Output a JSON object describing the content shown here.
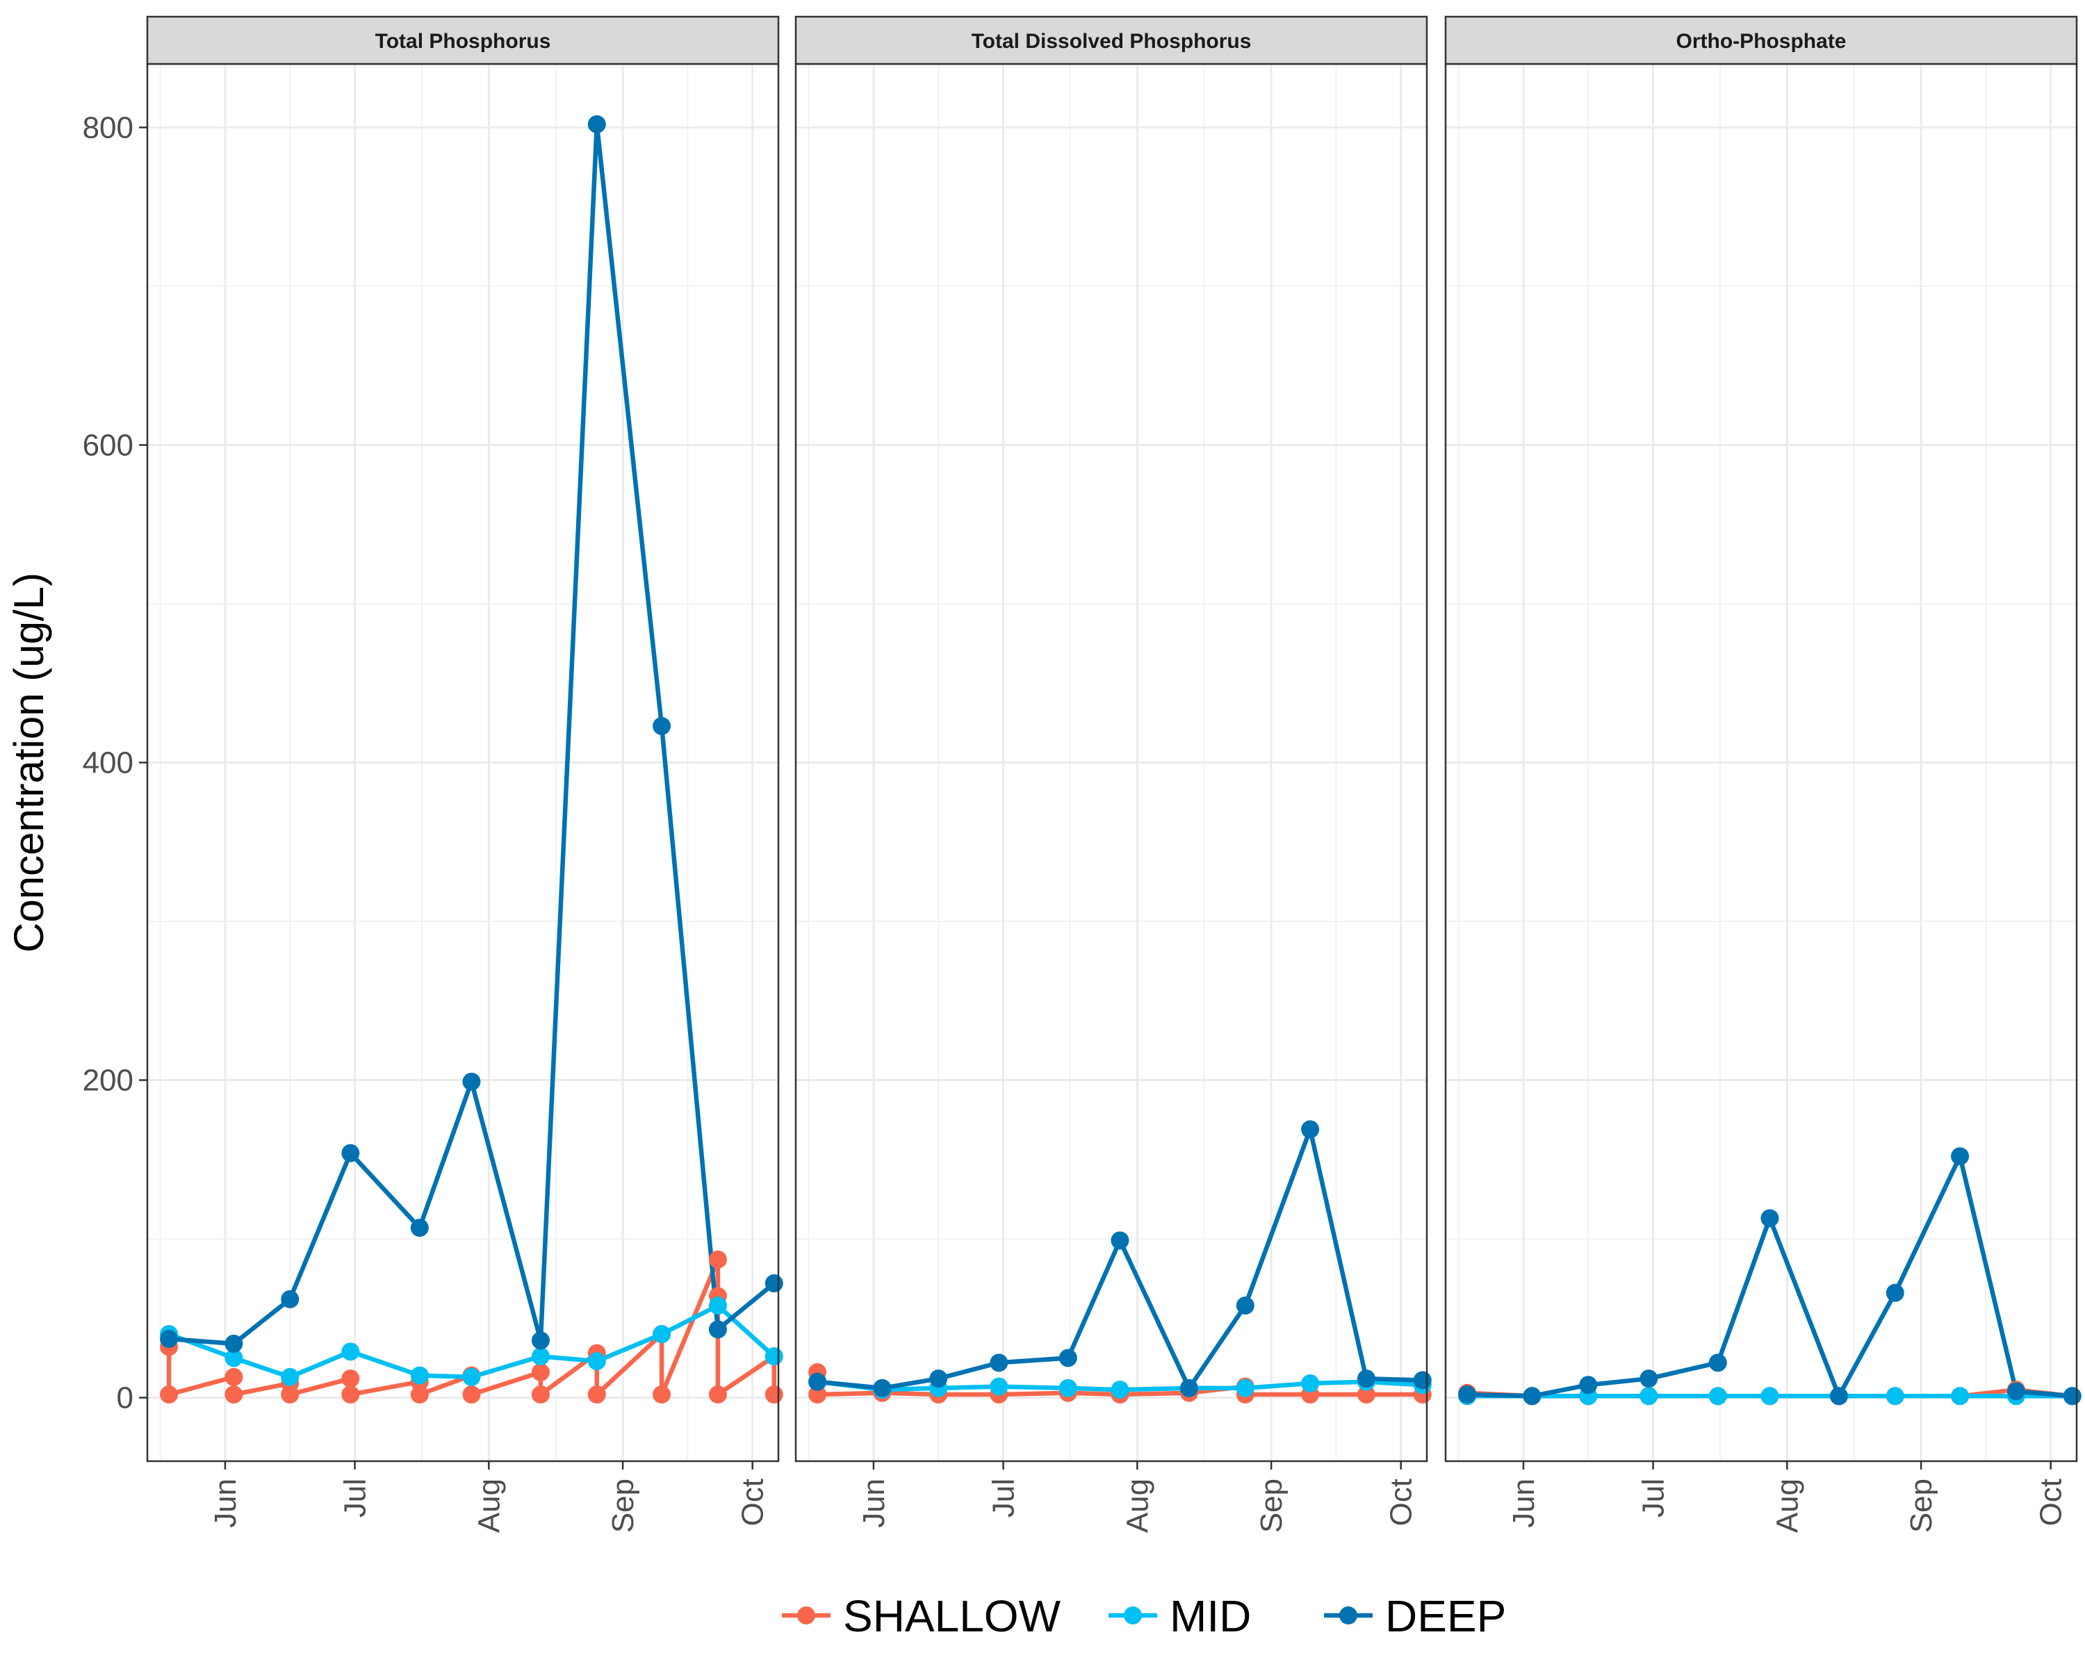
{
  "chart_data": {
    "type": "line",
    "ylabel": "Concentration (ug/L)",
    "xlabel": "",
    "ylim": [
      -40,
      840
    ],
    "y_ticks": [
      0,
      200,
      400,
      600,
      800
    ],
    "x_range": [
      "2023-05-14",
      "2023-10-07"
    ],
    "x_ticks": [
      {
        "label": "Jun",
        "date": "2023-06-01"
      },
      {
        "label": "Jul",
        "date": "2023-07-01"
      },
      {
        "label": "Aug",
        "date": "2023-08-01"
      },
      {
        "label": "Sep",
        "date": "2023-09-01"
      },
      {
        "label": "Oct",
        "date": "2023-10-01"
      }
    ],
    "grid": true,
    "legend_position": "bottom",
    "legend": [
      {
        "name": "SHALLOW",
        "color": "#F8674C"
      },
      {
        "name": "MID",
        "color": "#00BFF2"
      },
      {
        "name": "DEEP",
        "color": "#0072B2"
      }
    ],
    "panels": [
      {
        "title": "Total Phosphorus",
        "series": [
          {
            "name": "SHALLOW",
            "color": "#F8674C",
            "points": [
              [
                "2023-05-19",
                32
              ],
              [
                "2023-05-19",
                2
              ],
              [
                "2023-06-03",
                13
              ],
              [
                "2023-06-03",
                2
              ],
              [
                "2023-06-16",
                9
              ],
              [
                "2023-06-16",
                2
              ],
              [
                "2023-06-30",
                12
              ],
              [
                "2023-06-30",
                2
              ],
              [
                "2023-07-16",
                10
              ],
              [
                "2023-07-16",
                2
              ],
              [
                "2023-07-28",
                14
              ],
              [
                "2023-07-28",
                2
              ],
              [
                "2023-08-13",
                16
              ],
              [
                "2023-08-13",
                2
              ],
              [
                "2023-08-26",
                28
              ],
              [
                "2023-08-26",
                2
              ],
              [
                "2023-09-10",
                40
              ],
              [
                "2023-09-10",
                2
              ],
              [
                "2023-09-23",
                87
              ],
              [
                "2023-09-23",
                64
              ],
              [
                "2023-09-23",
                2
              ],
              [
                "2023-10-06",
                26
              ],
              [
                "2023-10-06",
                2
              ]
            ]
          },
          {
            "name": "MID",
            "color": "#00BFF2",
            "points": [
              [
                "2023-05-19",
                40
              ],
              [
                "2023-06-03",
                25
              ],
              [
                "2023-06-16",
                13
              ],
              [
                "2023-06-30",
                29
              ],
              [
                "2023-07-16",
                14
              ],
              [
                "2023-07-28",
                13
              ],
              [
                "2023-08-13",
                26
              ],
              [
                "2023-08-26",
                23
              ],
              [
                "2023-09-10",
                40
              ],
              [
                "2023-09-23",
                58
              ],
              [
                "2023-10-06",
                26
              ]
            ]
          },
          {
            "name": "DEEP",
            "color": "#0072B2",
            "points": [
              [
                "2023-05-19",
                37
              ],
              [
                "2023-06-03",
                34
              ],
              [
                "2023-06-16",
                62
              ],
              [
                "2023-06-30",
                154
              ],
              [
                "2023-07-16",
                107
              ],
              [
                "2023-07-28",
                199
              ],
              [
                "2023-08-13",
                36
              ],
              [
                "2023-08-26",
                802
              ],
              [
                "2023-09-10",
                423
              ],
              [
                "2023-09-23",
                43
              ],
              [
                "2023-10-06",
                72
              ]
            ]
          }
        ]
      },
      {
        "title": "Total Dissolved Phosphorus",
        "series": [
          {
            "name": "SHALLOW",
            "color": "#F8674C",
            "points": [
              [
                "2023-05-19",
                16
              ],
              [
                "2023-05-19",
                2
              ],
              [
                "2023-06-03",
                3
              ],
              [
                "2023-06-16",
                2
              ],
              [
                "2023-06-30",
                2
              ],
              [
                "2023-07-16",
                3
              ],
              [
                "2023-07-28",
                2
              ],
              [
                "2023-08-13",
                3
              ],
              [
                "2023-08-26",
                7
              ],
              [
                "2023-08-26",
                2
              ],
              [
                "2023-09-10",
                2
              ],
              [
                "2023-09-23",
                2
              ],
              [
                "2023-10-06",
                2
              ]
            ]
          },
          {
            "name": "MID",
            "color": "#00BFF2",
            "points": [
              [
                "2023-05-19",
                10
              ],
              [
                "2023-06-03",
                5
              ],
              [
                "2023-06-16",
                6
              ],
              [
                "2023-06-30",
                7
              ],
              [
                "2023-07-16",
                6
              ],
              [
                "2023-07-28",
                5
              ],
              [
                "2023-08-13",
                6
              ],
              [
                "2023-08-26",
                6
              ],
              [
                "2023-09-10",
                9
              ],
              [
                "2023-09-23",
                10
              ],
              [
                "2023-10-06",
                8
              ]
            ]
          },
          {
            "name": "DEEP",
            "color": "#0072B2",
            "points": [
              [
                "2023-05-19",
                10
              ],
              [
                "2023-06-03",
                6
              ],
              [
                "2023-06-16",
                12
              ],
              [
                "2023-06-30",
                22
              ],
              [
                "2023-07-16",
                25
              ],
              [
                "2023-07-28",
                99
              ],
              [
                "2023-08-13",
                6
              ],
              [
                "2023-08-26",
                58
              ],
              [
                "2023-09-10",
                169
              ],
              [
                "2023-09-23",
                12
              ],
              [
                "2023-10-06",
                11
              ]
            ]
          }
        ]
      },
      {
        "title": "Ortho-Phosphate",
        "series": [
          {
            "name": "SHALLOW",
            "color": "#F8674C",
            "points": [
              [
                "2023-05-19",
                3
              ],
              [
                "2023-06-03",
                1
              ],
              [
                "2023-06-16",
                1
              ],
              [
                "2023-06-30",
                1
              ],
              [
                "2023-07-16",
                1
              ],
              [
                "2023-07-28",
                1
              ],
              [
                "2023-08-13",
                1
              ],
              [
                "2023-08-26",
                1
              ],
              [
                "2023-09-10",
                1
              ],
              [
                "2023-09-23",
                5
              ],
              [
                "2023-10-06",
                1
              ]
            ]
          },
          {
            "name": "MID",
            "color": "#00BFF2",
            "points": [
              [
                "2023-05-19",
                1
              ],
              [
                "2023-06-03",
                1
              ],
              [
                "2023-06-16",
                1
              ],
              [
                "2023-06-30",
                1
              ],
              [
                "2023-07-16",
                1
              ],
              [
                "2023-07-28",
                1
              ],
              [
                "2023-08-13",
                1
              ],
              [
                "2023-08-26",
                1
              ],
              [
                "2023-09-10",
                1
              ],
              [
                "2023-09-23",
                1
              ],
              [
                "2023-10-06",
                1
              ]
            ]
          },
          {
            "name": "DEEP",
            "color": "#0072B2",
            "points": [
              [
                "2023-05-19",
                2
              ],
              [
                "2023-06-03",
                1
              ],
              [
                "2023-06-16",
                8
              ],
              [
                "2023-06-30",
                12
              ],
              [
                "2023-07-16",
                22
              ],
              [
                "2023-07-28",
                113
              ],
              [
                "2023-08-13",
                1
              ],
              [
                "2023-08-26",
                66
              ],
              [
                "2023-09-10",
                152
              ],
              [
                "2023-09-23",
                4
              ],
              [
                "2023-10-06",
                1
              ]
            ]
          }
        ]
      }
    ]
  }
}
